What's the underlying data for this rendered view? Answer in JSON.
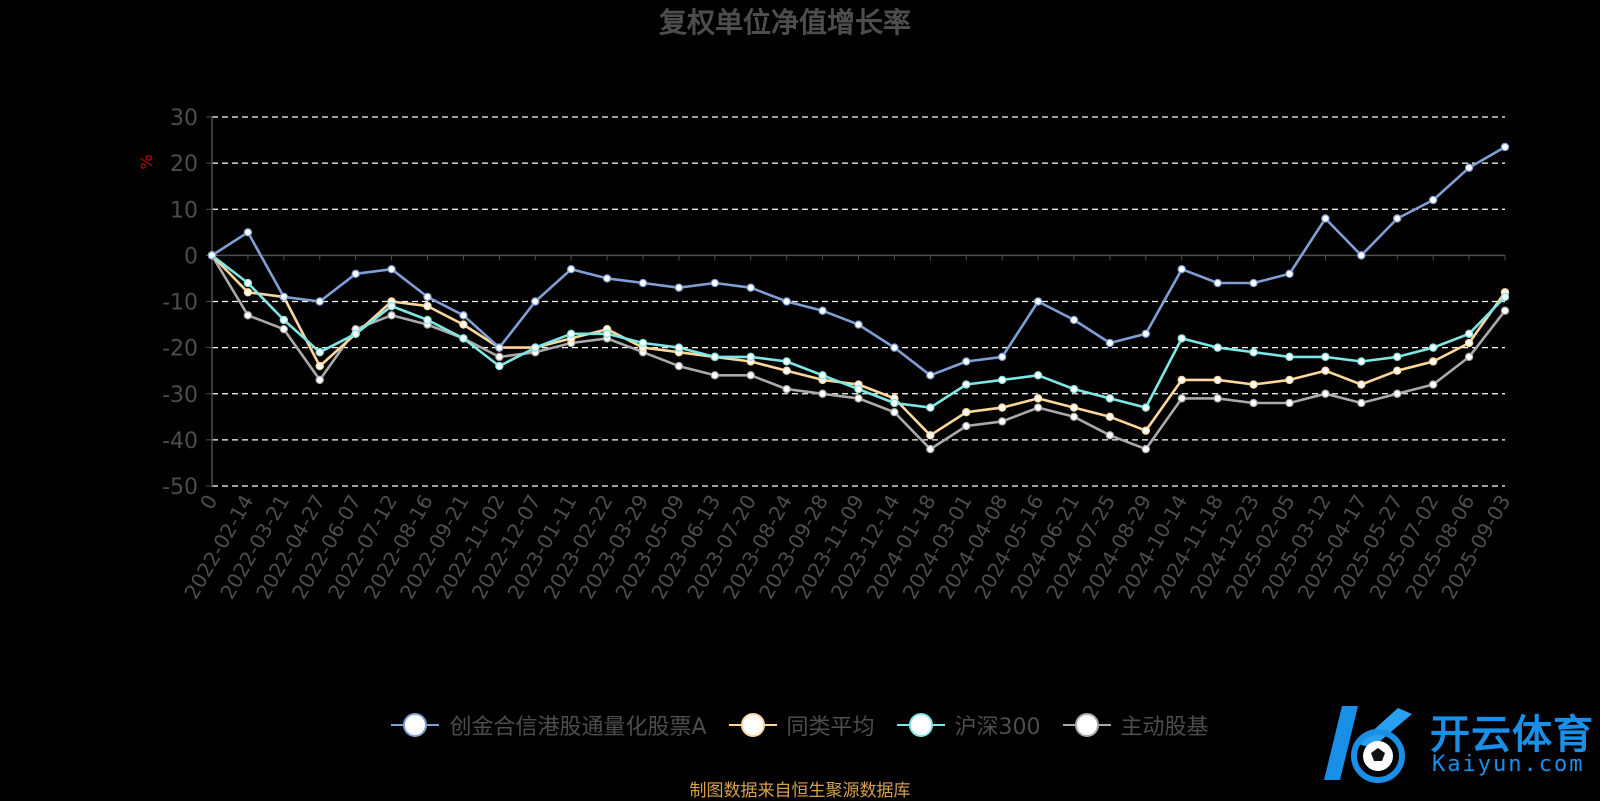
{
  "chart_data": {
    "type": "line",
    "title": "复权单位净值增长率",
    "ylabel": "%",
    "ylim": [
      -50,
      30
    ],
    "yticks": [
      30,
      20,
      10,
      0,
      -10,
      -20,
      -30,
      -40,
      -50
    ],
    "grid": true,
    "legend_position": "bottom",
    "categories": [
      "0",
      "2022-02-14",
      "2022-03-21",
      "2022-04-27",
      "2022-06-07",
      "2022-07-12",
      "2022-08-16",
      "2022-09-21",
      "2022-11-02",
      "2022-12-07",
      "2023-01-11",
      "2023-02-22",
      "2023-03-29",
      "2023-05-09",
      "2023-06-13",
      "2023-07-20",
      "2023-08-24",
      "2023-09-28",
      "2023-11-09",
      "2023-12-14",
      "2024-01-18",
      "2024-03-01",
      "2024-04-08",
      "2024-05-16",
      "2024-06-21",
      "2024-07-25",
      "2024-08-29",
      "2024-10-14",
      "2024-11-18",
      "2024-12-23",
      "2025-02-05",
      "2025-03-12",
      "2025-04-17",
      "2025-05-27",
      "2025-07-02",
      "2025-08-06",
      "2025-09-03"
    ],
    "series": [
      {
        "name": "创金合信港股通量化股票A",
        "color": "#7f9fd6",
        "values": [
          0,
          5,
          -9,
          -10,
          -4,
          -3,
          -9,
          -13,
          -20,
          -10,
          -3,
          -5,
          -6,
          -7,
          -6,
          -7,
          -10,
          -12,
          -15,
          -20,
          -26,
          -23,
          -22,
          -10,
          -14,
          -19,
          -17,
          -3,
          -6,
          -6,
          -4,
          8,
          0,
          8,
          12,
          19,
          23.5
        ]
      },
      {
        "name": "同类平均",
        "color": "#ffd79a",
        "values": [
          0,
          -8,
          -9,
          -24,
          -17,
          -10,
          -11,
          -15,
          -20,
          -20,
          -18,
          -16,
          -20,
          -21,
          -22,
          -23,
          -25,
          -27,
          -28,
          -31,
          -39,
          -34,
          -33,
          -31,
          -33,
          -35,
          -38,
          -27,
          -27,
          -28,
          -27,
          -25,
          -28,
          -25,
          -23,
          -19,
          -8
        ]
      },
      {
        "name": "沪深300",
        "color": "#7ee6e4",
        "values": [
          0,
          -6,
          -14,
          -21,
          -17,
          -11,
          -14,
          -18,
          -24,
          -20,
          -17,
          -17,
          -19,
          -20,
          -22,
          -22,
          -23,
          -26,
          -29,
          -32,
          -33,
          -28,
          -27,
          -26,
          -29,
          -31,
          -33,
          -18,
          -20,
          -21,
          -22,
          -22,
          -23,
          -22,
          -20,
          -17,
          -9
        ]
      },
      {
        "name": "主动股基",
        "color": "#aaaaaa",
        "values": [
          0,
          -13,
          -16,
          -27,
          -16,
          -13,
          -15,
          -18,
          -22,
          -21,
          -19,
          -18,
          -21,
          -24,
          -26,
          -26,
          -29,
          -30,
          -31,
          -34,
          -42,
          -37,
          -36,
          -33,
          -35,
          -39,
          -42,
          -31,
          -31,
          -32,
          -32,
          -30,
          -32,
          -30,
          -28,
          -22,
          -12
        ]
      }
    ]
  },
  "footer": {
    "source": "制图数据来自恒生聚源数据库"
  },
  "watermark": {
    "brand": "开云体育",
    "url": "Kaiyun.com",
    "logo_icon": "kaiyun-k-soccer-logo-icon"
  },
  "colors": {
    "background": "#000000",
    "grid": "#ffffff",
    "text": "#4d4d4d",
    "ylabel": "#cc0000",
    "source": "#d7a24a",
    "watermark": "#1a8fe8"
  }
}
